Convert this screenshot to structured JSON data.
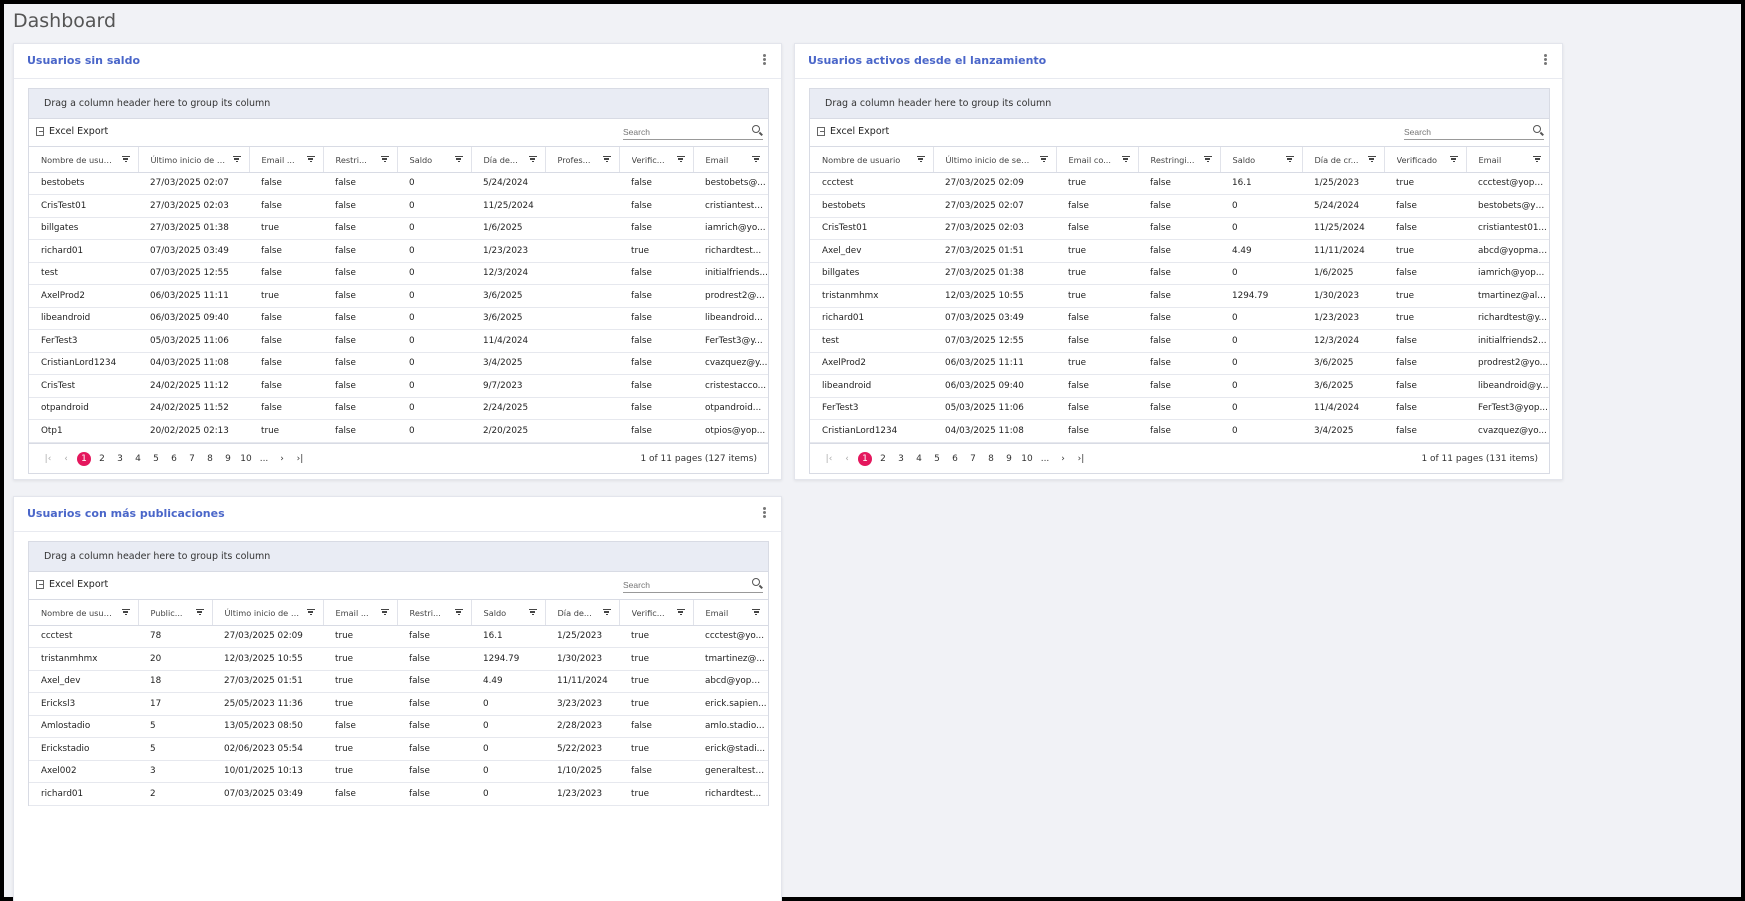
{
  "page_title": "Dashboard",
  "common": {
    "group_panel": "Drag a column header here to group its column",
    "excel_export": "Excel Export",
    "search_placeholder": "Search",
    "pages": [
      "1",
      "2",
      "3",
      "4",
      "5",
      "6",
      "7",
      "8",
      "9",
      "10",
      "..."
    ]
  },
  "panel1": {
    "title": "Usuarios sin saldo",
    "headers": [
      "Nombre de usuario",
      "Último inicio de s...",
      "Email ...",
      "Restri...",
      "Saldo",
      "Día de...",
      "Profes...",
      "Verific...",
      "Email"
    ],
    "rows": [
      [
        "bestobets",
        "27/03/2025 02:07",
        "false",
        "false",
        "0",
        "5/24/2024",
        "",
        "false",
        "bestobets@..."
      ],
      [
        "CrisTest01",
        "27/03/2025 02:03",
        "false",
        "false",
        "0",
        "11/25/2024",
        "",
        "false",
        "cristiantest0..."
      ],
      [
        "billgates",
        "27/03/2025 01:38",
        "true",
        "false",
        "0",
        "1/6/2025",
        "",
        "false",
        "iamrich@yo..."
      ],
      [
        "richard01",
        "07/03/2025 03:49",
        "false",
        "false",
        "0",
        "1/23/2023",
        "",
        "true",
        "richardtest..."
      ],
      [
        "test",
        "07/03/2025 12:55",
        "false",
        "false",
        "0",
        "12/3/2024",
        "",
        "false",
        "initialfriends..."
      ],
      [
        "AxelProd2",
        "06/03/2025 11:11",
        "true",
        "false",
        "0",
        "3/6/2025",
        "",
        "false",
        "prodrest2@..."
      ],
      [
        "libeandroid",
        "06/03/2025 09:40",
        "false",
        "false",
        "0",
        "3/6/2025",
        "",
        "false",
        "libeandroid..."
      ],
      [
        "FerTest3",
        "05/03/2025 11:06",
        "false",
        "false",
        "0",
        "11/4/2024",
        "",
        "false",
        "FerTest3@y..."
      ],
      [
        "CristianLord1234",
        "04/03/2025 11:08",
        "false",
        "false",
        "0",
        "3/4/2025",
        "",
        "false",
        "cvazquez@y..."
      ],
      [
        "CrisTest",
        "24/02/2025 11:12",
        "false",
        "false",
        "0",
        "9/7/2023",
        "",
        "false",
        "cristestacco..."
      ],
      [
        "otpandroid",
        "24/02/2025 11:52",
        "false",
        "false",
        "0",
        "2/24/2025",
        "",
        "false",
        "otpandroid..."
      ],
      [
        "Otp1",
        "20/02/2025 02:13",
        "true",
        "false",
        "0",
        "2/20/2025",
        "",
        "false",
        "otpios@yop..."
      ]
    ],
    "pager_info": "1 of 11 pages (127 items)"
  },
  "panel2": {
    "title": "Usuarios activos desde el lanzamiento",
    "headers": [
      "Nombre de usuario",
      "Último inicio de sesión",
      "Email co...",
      "Restringi...",
      "Saldo",
      "Día de cr...",
      "Verificado",
      "Email"
    ],
    "rows": [
      [
        "ccctest",
        "27/03/2025 02:09",
        "true",
        "false",
        "16.1",
        "1/25/2023",
        "true",
        "ccctest@yopm..."
      ],
      [
        "bestobets",
        "27/03/2025 02:07",
        "false",
        "false",
        "0",
        "5/24/2024",
        "false",
        "bestobets@yo..."
      ],
      [
        "CrisTest01",
        "27/03/2025 02:03",
        "false",
        "false",
        "0",
        "11/25/2024",
        "false",
        "cristiantest01..."
      ],
      [
        "Axel_dev",
        "27/03/2025 01:51",
        "true",
        "false",
        "4.49",
        "11/11/2024",
        "true",
        "abcd@yopmail..."
      ],
      [
        "billgates",
        "27/03/2025 01:38",
        "true",
        "false",
        "0",
        "1/6/2025",
        "false",
        "iamrich@yop..."
      ],
      [
        "tristanmhmx",
        "12/03/2025 10:55",
        "true",
        "false",
        "1294.79",
        "1/30/2023",
        "true",
        "tmartinez@als..."
      ],
      [
        "richard01",
        "07/03/2025 03:49",
        "false",
        "false",
        "0",
        "1/23/2023",
        "true",
        "richardtest@y..."
      ],
      [
        "test",
        "07/03/2025 12:55",
        "false",
        "false",
        "0",
        "12/3/2024",
        "false",
        "initialfriends2..."
      ],
      [
        "AxelProd2",
        "06/03/2025 11:11",
        "true",
        "false",
        "0",
        "3/6/2025",
        "false",
        "prodrest2@yo..."
      ],
      [
        "libeandroid",
        "06/03/2025 09:40",
        "false",
        "false",
        "0",
        "3/6/2025",
        "false",
        "libeandroid@y..."
      ],
      [
        "FerTest3",
        "05/03/2025 11:06",
        "false",
        "false",
        "0",
        "11/4/2024",
        "false",
        "FerTest3@yop..."
      ],
      [
        "CristianLord1234",
        "04/03/2025 11:08",
        "false",
        "false",
        "0",
        "3/4/2025",
        "false",
        "cvazquez@yo..."
      ]
    ],
    "pager_info": "1 of 11 pages (131 items)"
  },
  "panel3": {
    "title": "Usuarios con más publicaciones",
    "headers": [
      "Nombre de usuario",
      "Public...",
      "Último inicio de s...",
      "Email ...",
      "Restri...",
      "Saldo",
      "Día de...",
      "Verific...",
      "Email"
    ],
    "rows": [
      [
        "ccctest",
        "78",
        "27/03/2025 02:09",
        "true",
        "false",
        "16.1",
        "1/25/2023",
        "true",
        "ccctest@yo..."
      ],
      [
        "tristanmhmx",
        "20",
        "12/03/2025 10:55",
        "true",
        "false",
        "1294.79",
        "1/30/2023",
        "true",
        "tmartinez@..."
      ],
      [
        "Axel_dev",
        "18",
        "27/03/2025 01:51",
        "true",
        "false",
        "4.49",
        "11/11/2024",
        "true",
        "abcd@yopm..."
      ],
      [
        "Ericksl3",
        "17",
        "25/05/2023 11:36",
        "true",
        "false",
        "0",
        "3/23/2023",
        "true",
        "erick.sapien..."
      ],
      [
        "Amlostadio",
        "5",
        "13/05/2023 08:50",
        "false",
        "false",
        "0",
        "2/28/2023",
        "false",
        "amlo.stadio..."
      ],
      [
        "Erickstadio",
        "5",
        "02/06/2023 05:54",
        "true",
        "false",
        "0",
        "5/22/2023",
        "true",
        "erick@stadi..."
      ],
      [
        "Axel002",
        "3",
        "10/01/2025 10:13",
        "true",
        "false",
        "0",
        "1/10/2025",
        "false",
        "generaltest0..."
      ],
      [
        "richard01",
        "2",
        "07/03/2025 03:49",
        "false",
        "false",
        "0",
        "1/23/2023",
        "true",
        "richardtest..."
      ]
    ]
  }
}
